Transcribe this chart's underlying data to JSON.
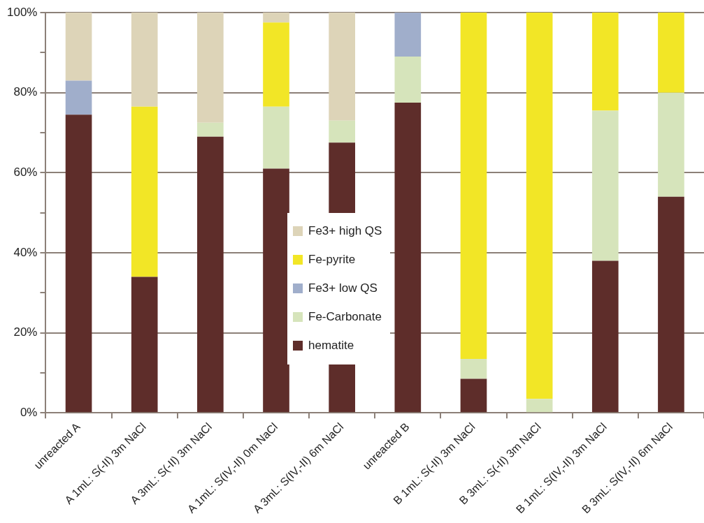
{
  "chart_data": {
    "type": "bar",
    "stacked": true,
    "categories": [
      "unreacted A",
      "A 1mL: S(-II) 3m NaCl",
      "A 3mL: S(-II) 3m NaCl",
      "A 1mL: S(IV,-II) 0m NaCl",
      "A 3mL: S(IV,-II) 6m NaCl",
      "unreacted B",
      "B 1mL: S(-II) 3m NaCl",
      "B 3mL: S(-II) 3m NaCl",
      "B 1mL: S(IV,-II) 3m NaCl",
      "B 3mL: S(IV,-II) 6m NaCl"
    ],
    "series": [
      {
        "name": "hematite",
        "color": "#5e2d2a",
        "values": [
          74.5,
          34,
          69,
          61,
          67.5,
          77.5,
          8.5,
          0,
          38,
          54
        ]
      },
      {
        "name": "Fe-Carbonate",
        "color": "#d6e4bb",
        "values": [
          0,
          0,
          3.5,
          15.5,
          5.5,
          11.5,
          5,
          3.5,
          37.5,
          26
        ]
      },
      {
        "name": "Fe3+ low QS",
        "color": "#a0aecb",
        "values": [
          8.5,
          0,
          0,
          0,
          0,
          11,
          0,
          0,
          0,
          0
        ]
      },
      {
        "name": "Fe-pyrite",
        "color": "#f2e626",
        "values": [
          0,
          42.5,
          0,
          21,
          0,
          0,
          86.5,
          96.5,
          24.5,
          20
        ]
      },
      {
        "name": "Fe3+ high QS",
        "color": "#ddd4b8",
        "values": [
          17,
          23.5,
          27.5,
          2.5,
          27,
          0,
          0,
          0,
          0,
          0
        ]
      }
    ],
    "ylim": [
      0,
      100
    ],
    "yticks": [
      {
        "value": 0,
        "label": "0%"
      },
      {
        "value": 10,
        "label": null
      },
      {
        "value": 20,
        "label": "20%"
      },
      {
        "value": 30,
        "label": null
      },
      {
        "value": 40,
        "label": "40%"
      },
      {
        "value": 50,
        "label": null
      },
      {
        "value": 60,
        "label": "60%"
      },
      {
        "value": 70,
        "label": null
      },
      {
        "value": 80,
        "label": "80%"
      },
      {
        "value": 90,
        "label": null
      },
      {
        "value": 100,
        "label": "100%"
      }
    ],
    "grid": "y",
    "legend": "center"
  }
}
